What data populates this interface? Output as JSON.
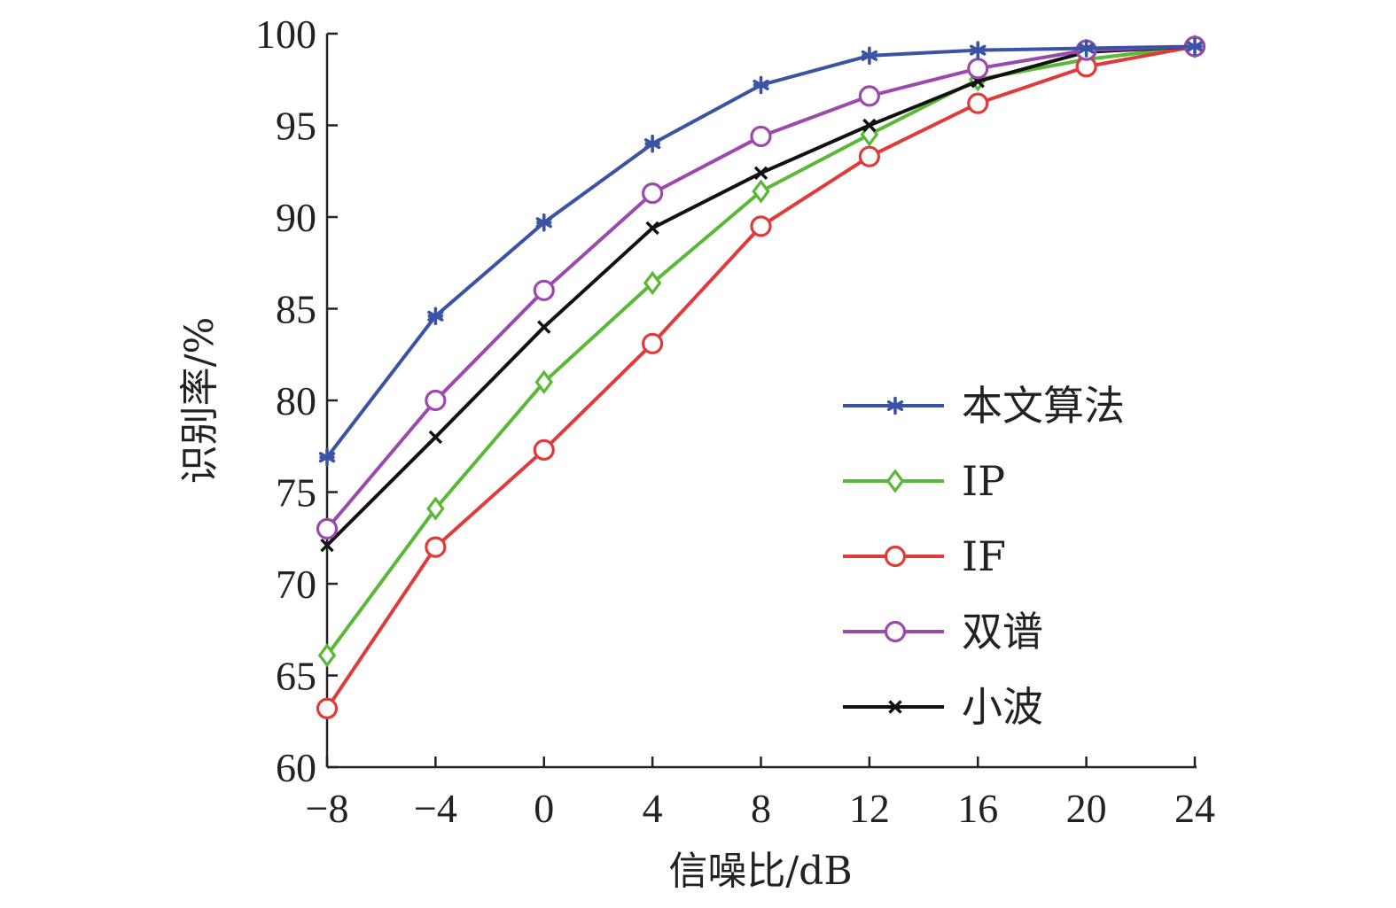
{
  "chart_data": {
    "type": "line",
    "title": "",
    "xlabel": "信噪比/dB",
    "ylabel": "识别率/%",
    "x": [
      -8,
      -4,
      0,
      4,
      8,
      12,
      16,
      20,
      24
    ],
    "x_ticks": [
      "−8",
      "−4",
      "0",
      "4",
      "8",
      "12",
      "16",
      "20",
      "24"
    ],
    "y_ticks": [
      "60",
      "65",
      "70",
      "75",
      "80",
      "85",
      "90",
      "95",
      "100"
    ],
    "xlim": [
      -8,
      24
    ],
    "ylim": [
      60,
      100
    ],
    "grid": false,
    "legend_position": "right",
    "series": [
      {
        "name": "本文算法",
        "color": "#3a53a4",
        "marker": "asterisk",
        "values": [
          76.9,
          84.6,
          89.7,
          94.0,
          97.2,
          98.8,
          99.1,
          99.2,
          99.3
        ]
      },
      {
        "name": "IP",
        "color": "#5ab738",
        "marker": "diamond",
        "values": [
          66.1,
          74.1,
          81.0,
          86.4,
          91.4,
          94.5,
          97.5,
          98.6,
          99.3
        ]
      },
      {
        "name": "IF",
        "color": "#e03a3a",
        "marker": "circle",
        "values": [
          63.2,
          72.0,
          77.3,
          83.1,
          89.5,
          93.3,
          96.2,
          98.2,
          99.3
        ]
      },
      {
        "name": "双谱",
        "color": "#9b49ad",
        "marker": "circle",
        "values": [
          73.0,
          80.0,
          86.0,
          91.3,
          94.4,
          96.6,
          98.1,
          99.1,
          99.3
        ]
      },
      {
        "name": "小波",
        "color": "#111111",
        "marker": "x",
        "values": [
          72.1,
          78.0,
          84.0,
          89.4,
          92.4,
          95.0,
          97.4,
          99.0,
          99.3
        ]
      }
    ]
  }
}
